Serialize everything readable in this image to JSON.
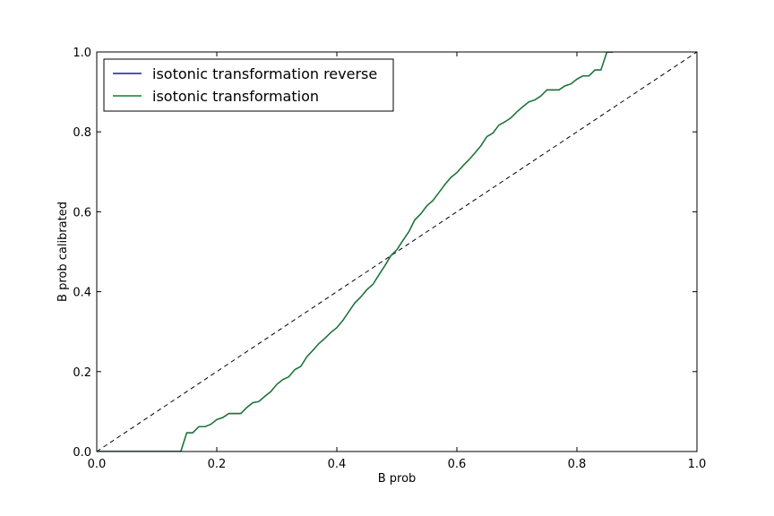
{
  "chart_data": {
    "type": "line",
    "xlabel": "B prob",
    "ylabel": "B prob calibrated",
    "xlim": [
      0.0,
      1.0
    ],
    "ylim": [
      0.0,
      1.0
    ],
    "grid": false,
    "legend_position": "top-left",
    "x_ticks": [
      "0.0",
      "0.2",
      "0.4",
      "0.6",
      "0.8",
      "1.0"
    ],
    "y_ticks": [
      "0.0",
      "0.2",
      "0.4",
      "0.6",
      "0.8",
      "1.0"
    ],
    "reference_line": {
      "style": "dashed",
      "color": "#000000",
      "x": [
        0.0,
        1.0
      ],
      "y": [
        0.0,
        1.0
      ]
    },
    "series": [
      {
        "name": "isotonic transformation reverse",
        "color": "#1f1f8f",
        "x": [
          0.0,
          0.14,
          0.15,
          0.16,
          0.17,
          0.18,
          0.19,
          0.2,
          0.21,
          0.22,
          0.23,
          0.24,
          0.25,
          0.26,
          0.27,
          0.28,
          0.29,
          0.3,
          0.31,
          0.32,
          0.33,
          0.34,
          0.35,
          0.36,
          0.37,
          0.38,
          0.39,
          0.4,
          0.41,
          0.42,
          0.43,
          0.44,
          0.45,
          0.46,
          0.47,
          0.48,
          0.49,
          0.5,
          0.51,
          0.52,
          0.53,
          0.54,
          0.55,
          0.56,
          0.57,
          0.58,
          0.59,
          0.6,
          0.61,
          0.62,
          0.63,
          0.64,
          0.65,
          0.66,
          0.67,
          0.68,
          0.69,
          0.7,
          0.71,
          0.72,
          0.73,
          0.74,
          0.75,
          0.76,
          0.77,
          0.78,
          0.79,
          0.8,
          0.81,
          0.82,
          0.83,
          0.84,
          0.85,
          0.86
        ],
        "y": [
          0.0,
          0.0,
          0.047,
          0.047,
          0.062,
          0.062,
          0.068,
          0.08,
          0.085,
          0.095,
          0.095,
          0.095,
          0.11,
          0.122,
          0.125,
          0.138,
          0.15,
          0.168,
          0.18,
          0.187,
          0.205,
          0.213,
          0.237,
          0.253,
          0.27,
          0.283,
          0.298,
          0.31,
          0.328,
          0.35,
          0.372,
          0.387,
          0.405,
          0.418,
          0.442,
          0.465,
          0.49,
          0.505,
          0.528,
          0.55,
          0.58,
          0.595,
          0.615,
          0.628,
          0.648,
          0.668,
          0.686,
          0.698,
          0.715,
          0.73,
          0.747,
          0.765,
          0.788,
          0.797,
          0.817,
          0.825,
          0.835,
          0.85,
          0.863,
          0.875,
          0.88,
          0.89,
          0.905,
          0.905,
          0.905,
          0.915,
          0.92,
          0.932,
          0.94,
          0.94,
          0.955,
          0.955,
          1.0,
          1.0
        ]
      },
      {
        "name": "isotonic transformation",
        "color": "#1a7a2e",
        "x": [
          0.0,
          0.14,
          0.15,
          0.16,
          0.17,
          0.18,
          0.19,
          0.2,
          0.21,
          0.22,
          0.23,
          0.24,
          0.25,
          0.26,
          0.27,
          0.28,
          0.29,
          0.3,
          0.31,
          0.32,
          0.33,
          0.34,
          0.35,
          0.36,
          0.37,
          0.38,
          0.39,
          0.4,
          0.41,
          0.42,
          0.43,
          0.44,
          0.45,
          0.46,
          0.47,
          0.48,
          0.49,
          0.5,
          0.51,
          0.52,
          0.53,
          0.54,
          0.55,
          0.56,
          0.57,
          0.58,
          0.59,
          0.6,
          0.61,
          0.62,
          0.63,
          0.64,
          0.65,
          0.66,
          0.67,
          0.68,
          0.69,
          0.7,
          0.71,
          0.72,
          0.73,
          0.74,
          0.75,
          0.76,
          0.77,
          0.78,
          0.79,
          0.8,
          0.81,
          0.82,
          0.83,
          0.84,
          0.85,
          0.86
        ],
        "y": [
          0.0,
          0.0,
          0.047,
          0.047,
          0.062,
          0.062,
          0.068,
          0.08,
          0.085,
          0.095,
          0.095,
          0.095,
          0.11,
          0.122,
          0.125,
          0.138,
          0.15,
          0.168,
          0.18,
          0.187,
          0.205,
          0.213,
          0.237,
          0.253,
          0.27,
          0.283,
          0.298,
          0.31,
          0.328,
          0.35,
          0.372,
          0.387,
          0.405,
          0.418,
          0.442,
          0.465,
          0.49,
          0.505,
          0.528,
          0.55,
          0.58,
          0.595,
          0.615,
          0.628,
          0.648,
          0.668,
          0.686,
          0.698,
          0.715,
          0.73,
          0.747,
          0.765,
          0.788,
          0.797,
          0.817,
          0.825,
          0.835,
          0.85,
          0.863,
          0.875,
          0.88,
          0.89,
          0.905,
          0.905,
          0.905,
          0.915,
          0.92,
          0.932,
          0.94,
          0.94,
          0.955,
          0.955,
          1.0,
          1.0
        ]
      }
    ]
  }
}
